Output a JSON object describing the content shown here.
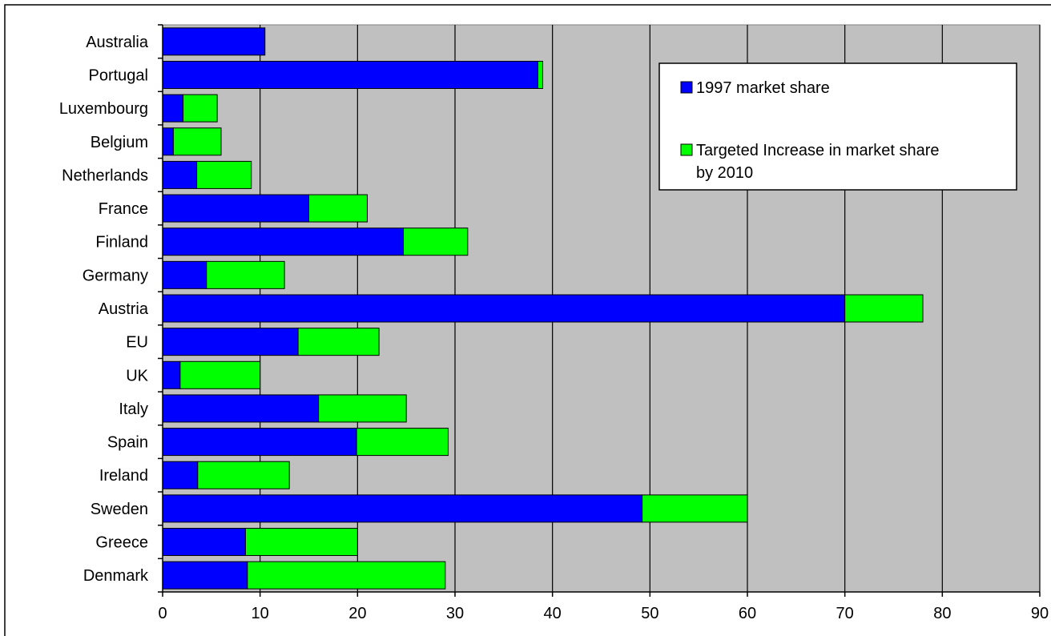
{
  "chart_data": {
    "type": "bar",
    "orientation": "horizontal",
    "stacked": true,
    "title": "",
    "xlabel": "",
    "ylabel": "",
    "xlim": [
      0,
      90
    ],
    "x_ticks": [
      0,
      10,
      20,
      30,
      40,
      50,
      60,
      70,
      80,
      90
    ],
    "grid": "vertical",
    "legend_position": "top-right",
    "plot_background": "#c0c0c0",
    "categories": [
      "Australia",
      "Portugal",
      "Luxembourg",
      "Belgium",
      "Netherlands",
      "France",
      "Finland",
      "Germany",
      "Austria",
      "EU",
      "UK",
      "Italy",
      "Spain",
      "Ireland",
      "Sweden",
      "Greece",
      "Denmark"
    ],
    "series": [
      {
        "name": "1997 market share",
        "color": "#0000ff",
        "values": [
          10.5,
          38.5,
          2.1,
          1.1,
          3.5,
          15,
          24.7,
          4.5,
          70,
          13.9,
          1.8,
          16,
          19.9,
          3.6,
          49.2,
          8.5,
          8.7
        ]
      },
      {
        "name": "Targeted Increase in market share by 2010",
        "color": "#00ff00",
        "values": [
          0,
          0.5,
          3.5,
          4.9,
          5.6,
          6,
          6.6,
          8,
          8,
          8.3,
          8.2,
          9,
          9.4,
          9.4,
          10.8,
          11.5,
          20.3
        ]
      }
    ]
  },
  "legend": {
    "entries": [
      {
        "text": "1997 market share",
        "color": "#0000ff"
      },
      {
        "text_lines": [
          "Targeted Increase in market share",
          "by 2010"
        ],
        "color": "#00ff00"
      }
    ]
  }
}
